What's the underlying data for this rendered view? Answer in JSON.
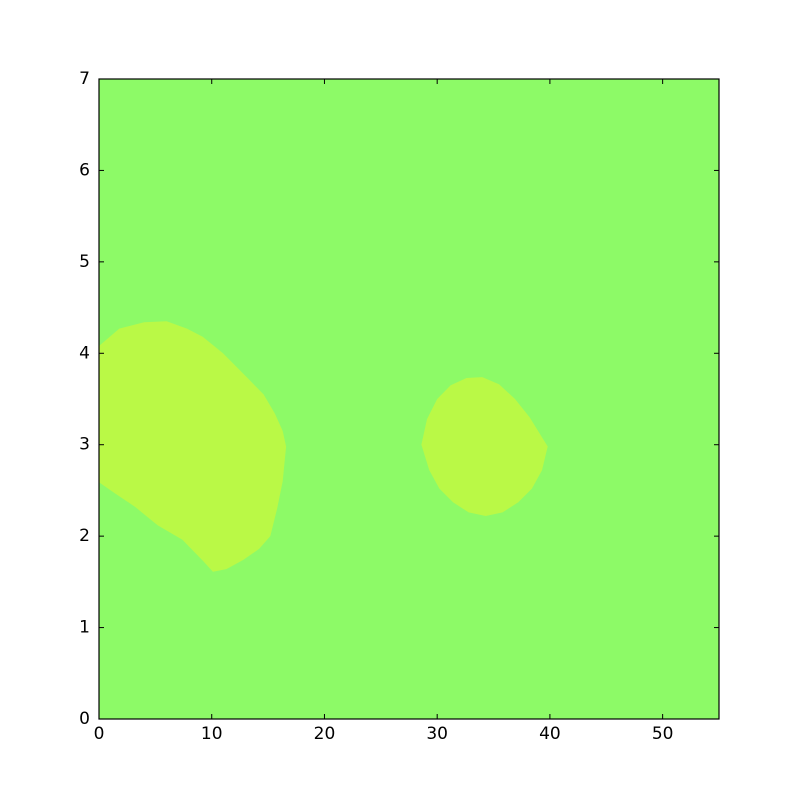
{
  "figure": {
    "background_color": "#ffffff"
  },
  "chart_data": {
    "type": "contour_filled",
    "title": "",
    "xlabel": "",
    "ylabel": "",
    "xlim": [
      0,
      55
    ],
    "ylim": [
      0,
      7
    ],
    "x_ticks": [
      0,
      10,
      20,
      30,
      40,
      50
    ],
    "y_ticks": [
      0,
      1,
      2,
      3,
      4,
      5,
      6,
      7
    ],
    "grid": false,
    "legend": "none",
    "axis_color": "#000000",
    "tick_label_color": "#000000",
    "tick_direction": "in",
    "ticks_on_all_sides": true,
    "levels": [
      {
        "band": "lower",
        "color": "#8dfa67"
      },
      {
        "band": "higher",
        "color": "#baf946"
      }
    ],
    "background_level_color": "#8dfa67",
    "regions": [
      {
        "name": "left-blob",
        "band": "higher",
        "color": "#baf946",
        "points": [
          [
            0,
            4.08
          ],
          [
            1.8,
            4.27
          ],
          [
            4.0,
            4.34
          ],
          [
            6.0,
            4.35
          ],
          [
            7.8,
            4.27
          ],
          [
            9.2,
            4.18
          ],
          [
            11.0,
            4.0
          ],
          [
            13.1,
            3.74
          ],
          [
            14.6,
            3.55
          ],
          [
            15.6,
            3.34
          ],
          [
            16.3,
            3.15
          ],
          [
            16.6,
            2.98
          ],
          [
            16.3,
            2.6
          ],
          [
            15.8,
            2.3
          ],
          [
            15.2,
            2.0
          ],
          [
            14.2,
            1.86
          ],
          [
            12.8,
            1.74
          ],
          [
            11.3,
            1.64
          ],
          [
            10.1,
            1.61
          ],
          [
            9.3,
            1.72
          ],
          [
            7.4,
            1.96
          ],
          [
            5.2,
            2.12
          ],
          [
            3.2,
            2.32
          ],
          [
            1.4,
            2.47
          ],
          [
            0,
            2.59
          ]
        ]
      },
      {
        "name": "right-blob",
        "band": "higher",
        "color": "#baf946",
        "points": [
          [
            28.6,
            3.0
          ],
          [
            29.1,
            3.28
          ],
          [
            30.0,
            3.5
          ],
          [
            31.2,
            3.65
          ],
          [
            32.6,
            3.73
          ],
          [
            34.0,
            3.74
          ],
          [
            35.5,
            3.66
          ],
          [
            36.9,
            3.5
          ],
          [
            38.2,
            3.3
          ],
          [
            39.1,
            3.12
          ],
          [
            39.8,
            2.98
          ],
          [
            39.3,
            2.72
          ],
          [
            38.4,
            2.52
          ],
          [
            37.2,
            2.37
          ],
          [
            35.8,
            2.26
          ],
          [
            34.3,
            2.22
          ],
          [
            32.8,
            2.26
          ],
          [
            31.4,
            2.37
          ],
          [
            30.2,
            2.52
          ],
          [
            29.3,
            2.72
          ]
        ]
      }
    ]
  }
}
